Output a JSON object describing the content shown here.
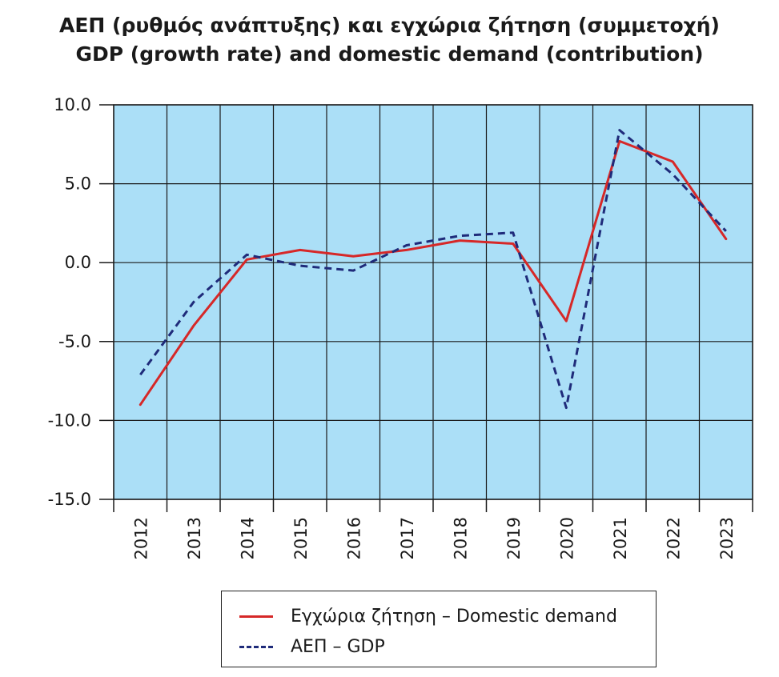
{
  "chart_data": {
    "type": "line",
    "title_line1": "ΑΕΠ (ρυθμός ανάπτυξης) και εγχώρια ζήτηση (συμμετοχή)",
    "title_line2": "GDP (growth rate) and domestic demand (contribution)",
    "x": [
      "2012",
      "2013",
      "2014",
      "2015",
      "2016",
      "2017",
      "2018",
      "2019",
      "2020",
      "2021",
      "2022",
      "2023"
    ],
    "ylim": [
      -15,
      10
    ],
    "yticks": [
      "10.0",
      "5.0",
      "0.0",
      "-5.0",
      "-10.0",
      "-15.0"
    ],
    "ytick_values": [
      10,
      5,
      0,
      -5,
      -10,
      -15
    ],
    "grid": true,
    "plot_background": "#abdff7",
    "legend_position": "bottom",
    "series": [
      {
        "name": "Εγχώρια ζήτηση – Domestic demand",
        "color": "#d62828",
        "style": "solid",
        "values": [
          -9.0,
          -4.0,
          0.2,
          0.8,
          0.4,
          0.8,
          1.4,
          1.2,
          -3.7,
          7.7,
          6.4,
          1.5
        ]
      },
      {
        "name": "ΑΕΠ – GDP",
        "color": "#1f2b7a",
        "style": "dashed",
        "values": [
          -7.1,
          -2.5,
          0.5,
          -0.2,
          -0.5,
          1.1,
          1.7,
          1.9,
          -9.2,
          8.4,
          5.6,
          2.0
        ]
      }
    ]
  }
}
